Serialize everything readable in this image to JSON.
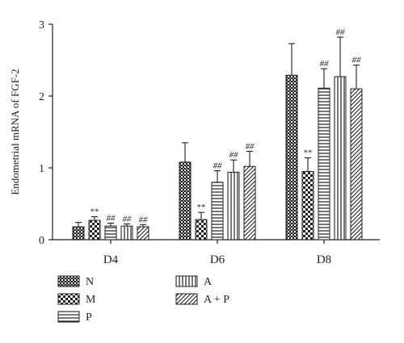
{
  "chart_data": {
    "type": "bar",
    "title": "",
    "ylabel": "Endometrial mRNA of FGF-2",
    "xlabel": "",
    "ylim": [
      0,
      3
    ],
    "yticks": [
      "0",
      "1",
      "2",
      "3"
    ],
    "categories": [
      "D4",
      "D6",
      "D8"
    ],
    "legend_position": "bottom",
    "series": [
      {
        "name": "N",
        "pattern": "crosshatch",
        "values": [
          0.18,
          1.08,
          2.29
        ],
        "errors": [
          0.06,
          0.27,
          0.44
        ],
        "annotations": [
          "",
          "",
          ""
        ]
      },
      {
        "name": "M",
        "pattern": "checker",
        "values": [
          0.27,
          0.28,
          0.95
        ],
        "errors": [
          0.05,
          0.1,
          0.19
        ],
        "annotations": [
          "**",
          "**",
          "**"
        ]
      },
      {
        "name": "P",
        "pattern": "horizontal",
        "values": [
          0.19,
          0.8,
          2.11
        ],
        "errors": [
          0.04,
          0.16,
          0.27
        ],
        "annotations": [
          "##",
          "##",
          "##"
        ]
      },
      {
        "name": "A",
        "pattern": "vertical",
        "values": [
          0.19,
          0.94,
          2.27
        ],
        "errors": [
          0.03,
          0.17,
          0.55
        ],
        "annotations": [
          "##",
          "##",
          "##"
        ]
      },
      {
        "name": "A + P",
        "pattern": "diagonal",
        "values": [
          0.18,
          1.02,
          2.1
        ],
        "errors": [
          0.03,
          0.21,
          0.33
        ],
        "annotations": [
          "##",
          "##",
          "##"
        ]
      }
    ]
  }
}
